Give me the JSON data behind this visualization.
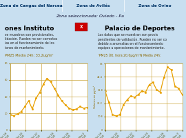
{
  "title_bar_color": "#4db8e8",
  "title_bar_text_color": "#003366",
  "bg_color": "#c8dff0",
  "panel_bg": "#ffffff",
  "grid_color": "#c8a030",
  "line_color": "#e8a000",
  "marker_color": "#e8a000",
  "tab_labels": [
    "Zona de Cangas del Narcea",
    "Zona de Avilés",
    "Zona de Ovieo"
  ],
  "header_text": "Zona seleccionada: Oviedo - Pa",
  "left_title": "ones Instituto",
  "right_title": "Palacio de Deportes",
  "left_subtitle": "se muestran son provisionales,\nlidación. Pueden no ser correctos\nias en el funcionamiento de los\niones de mantenimiento.",
  "right_subtitle": "Los datos que se muestran son provis\npendientes de validación. Pueden no ser co\ndebido a anomalías en el funcionamiento\nequipos u operaciones de mantenimiento.",
  "left_stat": "PM25 Media 24h: 33.2ug/m³",
  "right_stat": "¹PM25 Últ. hora:20.0μg/m²N Media 24h:",
  "left_ylim": [
    0,
    80
  ],
  "right_ylim": [
    0,
    53
  ],
  "right_yticks": [
    0,
    10.6,
    21.2,
    31.8,
    42.4,
    53
  ],
  "left_yticks": [
    0,
    20,
    40,
    60,
    80
  ],
  "left_data": [
    18,
    17,
    19,
    22,
    28,
    35,
    25,
    38,
    45,
    55,
    62,
    58,
    50,
    42,
    35,
    30,
    26,
    24,
    25,
    28,
    26,
    27
  ],
  "right_data": [
    31,
    22,
    12,
    11,
    12,
    20,
    24,
    27,
    26,
    28,
    31,
    30,
    36,
    38,
    32,
    30,
    42,
    50,
    48,
    35,
    33,
    28
  ],
  "x_labels": [
    "Oct 18\n0:00",
    "Oct 20\n0:00",
    "Oct 22\n0:00",
    "Oct 24\n0:00",
    "Oct 26\n0:00",
    "Nov 2\n0:00"
  ]
}
